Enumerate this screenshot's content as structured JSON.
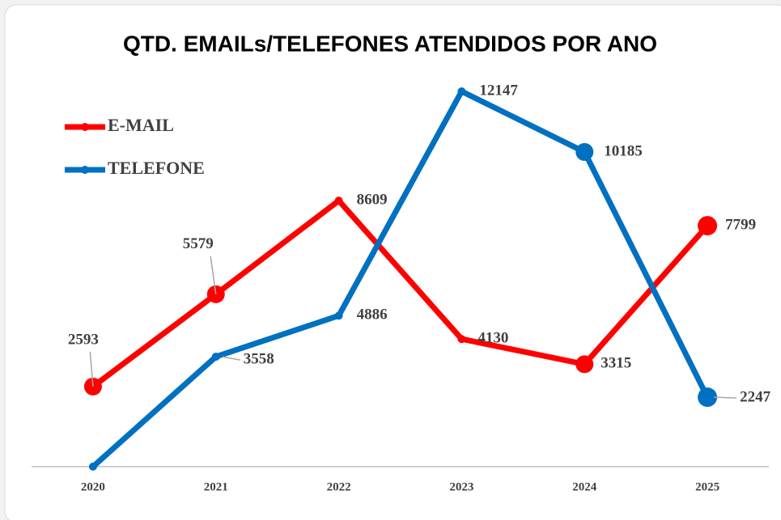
{
  "chart_data": {
    "type": "line",
    "title": "QTD. EMAILs/TELEFONES  ATENDIDOS POR ANO",
    "categories": [
      "2020",
      "2021",
      "2022",
      "2023",
      "2024",
      "2025"
    ],
    "series": [
      {
        "name": "E-MAIL",
        "color": "#ff0000",
        "values": [
          2593,
          5579,
          8609,
          4130,
          3315,
          7799
        ]
      },
      {
        "name": "TELEFONE",
        "color": "#0070c0",
        "values": [
          0,
          3558,
          4886,
          12147,
          10185,
          2247
        ]
      }
    ],
    "ylim": [
      0,
      12500
    ],
    "legend": "top-left"
  }
}
